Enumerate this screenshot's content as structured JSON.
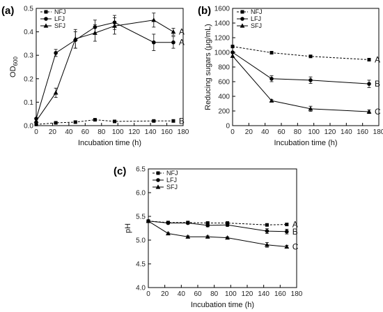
{
  "chart_data": [
    {
      "panel_label": "(a)",
      "type": "line",
      "xlabel": "Incubation time (h)",
      "ylabel": "OD600",
      "ylabel_main": "OD",
      "ylabel_sub": "600",
      "xlim": [
        0,
        180
      ],
      "ylim": [
        0,
        0.5
      ],
      "xticks": [
        "0",
        "20",
        "40",
        "60",
        "80",
        "100",
        "120",
        "140",
        "160",
        "180"
      ],
      "yticks": [
        "0.0",
        "0.1",
        "0.2",
        "0.3",
        "0.4",
        "0.5"
      ],
      "legend": "top-left",
      "series": [
        {
          "name": "NFJ",
          "marker": "square",
          "dashed": true,
          "x": [
            0,
            24,
            48,
            72,
            96,
            144,
            168
          ],
          "y": [
            0.005,
            0.012,
            0.015,
            0.025,
            0.018,
            0.02,
            0.02
          ],
          "err": [
            0,
            0.003,
            0.003,
            0.003,
            0.003,
            0.003,
            0.003
          ],
          "group_label": "B"
        },
        {
          "name": "LFJ",
          "marker": "circle",
          "dashed": false,
          "x": [
            0,
            24,
            48,
            72,
            96,
            144,
            168
          ],
          "y": [
            0.03,
            0.31,
            0.365,
            0.42,
            0.44,
            0.355,
            0.355
          ],
          "err": [
            0,
            0.015,
            0.035,
            0.03,
            0.03,
            0.035,
            0.025
          ],
          "group_label": "A"
        },
        {
          "name": "SFJ",
          "marker": "triangle",
          "dashed": false,
          "x": [
            0,
            24,
            48,
            72,
            96,
            144,
            168
          ],
          "y": [
            0.02,
            0.14,
            0.37,
            0.395,
            0.425,
            0.45,
            0.4
          ],
          "err": [
            0,
            0.02,
            0.04,
            0.035,
            0.035,
            0.03,
            0.015
          ],
          "group_label": "A"
        }
      ]
    },
    {
      "panel_label": "(b)",
      "type": "line",
      "xlabel": "Incubation time (h)",
      "ylabel": "Reducing sugars (μg/mL)",
      "xlim": [
        0,
        180
      ],
      "ylim": [
        0,
        1600
      ],
      "xticks": [
        "0",
        "20",
        "40",
        "60",
        "80",
        "100",
        "120",
        "140",
        "160",
        "180"
      ],
      "yticks": [
        "0",
        "200",
        "400",
        "600",
        "800",
        "1000",
        "1200",
        "1400",
        "1600"
      ],
      "legend": "top-left",
      "series": [
        {
          "name": "NFJ",
          "marker": "square",
          "dashed": true,
          "x": [
            0,
            48,
            96,
            168
          ],
          "y": [
            1080,
            995,
            945,
            900
          ],
          "err": [
            0,
            10,
            15,
            15
          ],
          "group_label": "A"
        },
        {
          "name": "LFJ",
          "marker": "circle",
          "dashed": false,
          "x": [
            0,
            48,
            96,
            168
          ],
          "y": [
            1000,
            640,
            620,
            570
          ],
          "err": [
            0,
            40,
            45,
            50
          ],
          "group_label": "B"
        },
        {
          "name": "SFJ",
          "marker": "triangle",
          "dashed": false,
          "x": [
            0,
            48,
            96,
            168
          ],
          "y": [
            950,
            340,
            230,
            190
          ],
          "err": [
            0,
            15,
            35,
            25
          ],
          "group_label": "C"
        }
      ]
    },
    {
      "panel_label": "(c)",
      "type": "line",
      "xlabel": "Incubation time (h)",
      "ylabel": "pH",
      "xlim": [
        0,
        180
      ],
      "ylim": [
        4.0,
        6.5
      ],
      "xticks": [
        "0",
        "20",
        "40",
        "60",
        "80",
        "100",
        "120",
        "140",
        "160",
        "180"
      ],
      "yticks": [
        "4.0",
        "4.5",
        "5.0",
        "5.5",
        "6.0",
        "6.5"
      ],
      "legend": "top-left",
      "series": [
        {
          "name": "NFJ",
          "marker": "square",
          "dashed": true,
          "x": [
            0,
            24,
            48,
            72,
            96,
            144,
            168
          ],
          "y": [
            5.4,
            5.37,
            5.37,
            5.36,
            5.36,
            5.32,
            5.33
          ],
          "err": [
            0,
            0.02,
            0.02,
            0.02,
            0.02,
            0.02,
            0.02
          ],
          "group_label": "A"
        },
        {
          "name": "LFJ",
          "marker": "circle",
          "dashed": false,
          "x": [
            0,
            24,
            48,
            72,
            96,
            144,
            168
          ],
          "y": [
            5.4,
            5.36,
            5.36,
            5.31,
            5.32,
            5.19,
            5.18
          ],
          "err": [
            0,
            0.02,
            0.02,
            0.03,
            0.03,
            0.05,
            0.05
          ],
          "group_label": "B"
        },
        {
          "name": "SFJ",
          "marker": "triangle",
          "dashed": false,
          "x": [
            0,
            24,
            48,
            72,
            96,
            144,
            168
          ],
          "y": [
            5.4,
            5.14,
            5.07,
            5.07,
            5.05,
            4.9,
            4.86
          ],
          "err": [
            0,
            0.02,
            0.02,
            0.02,
            0.02,
            0.05,
            0.03
          ],
          "group_label": "C"
        }
      ]
    }
  ]
}
